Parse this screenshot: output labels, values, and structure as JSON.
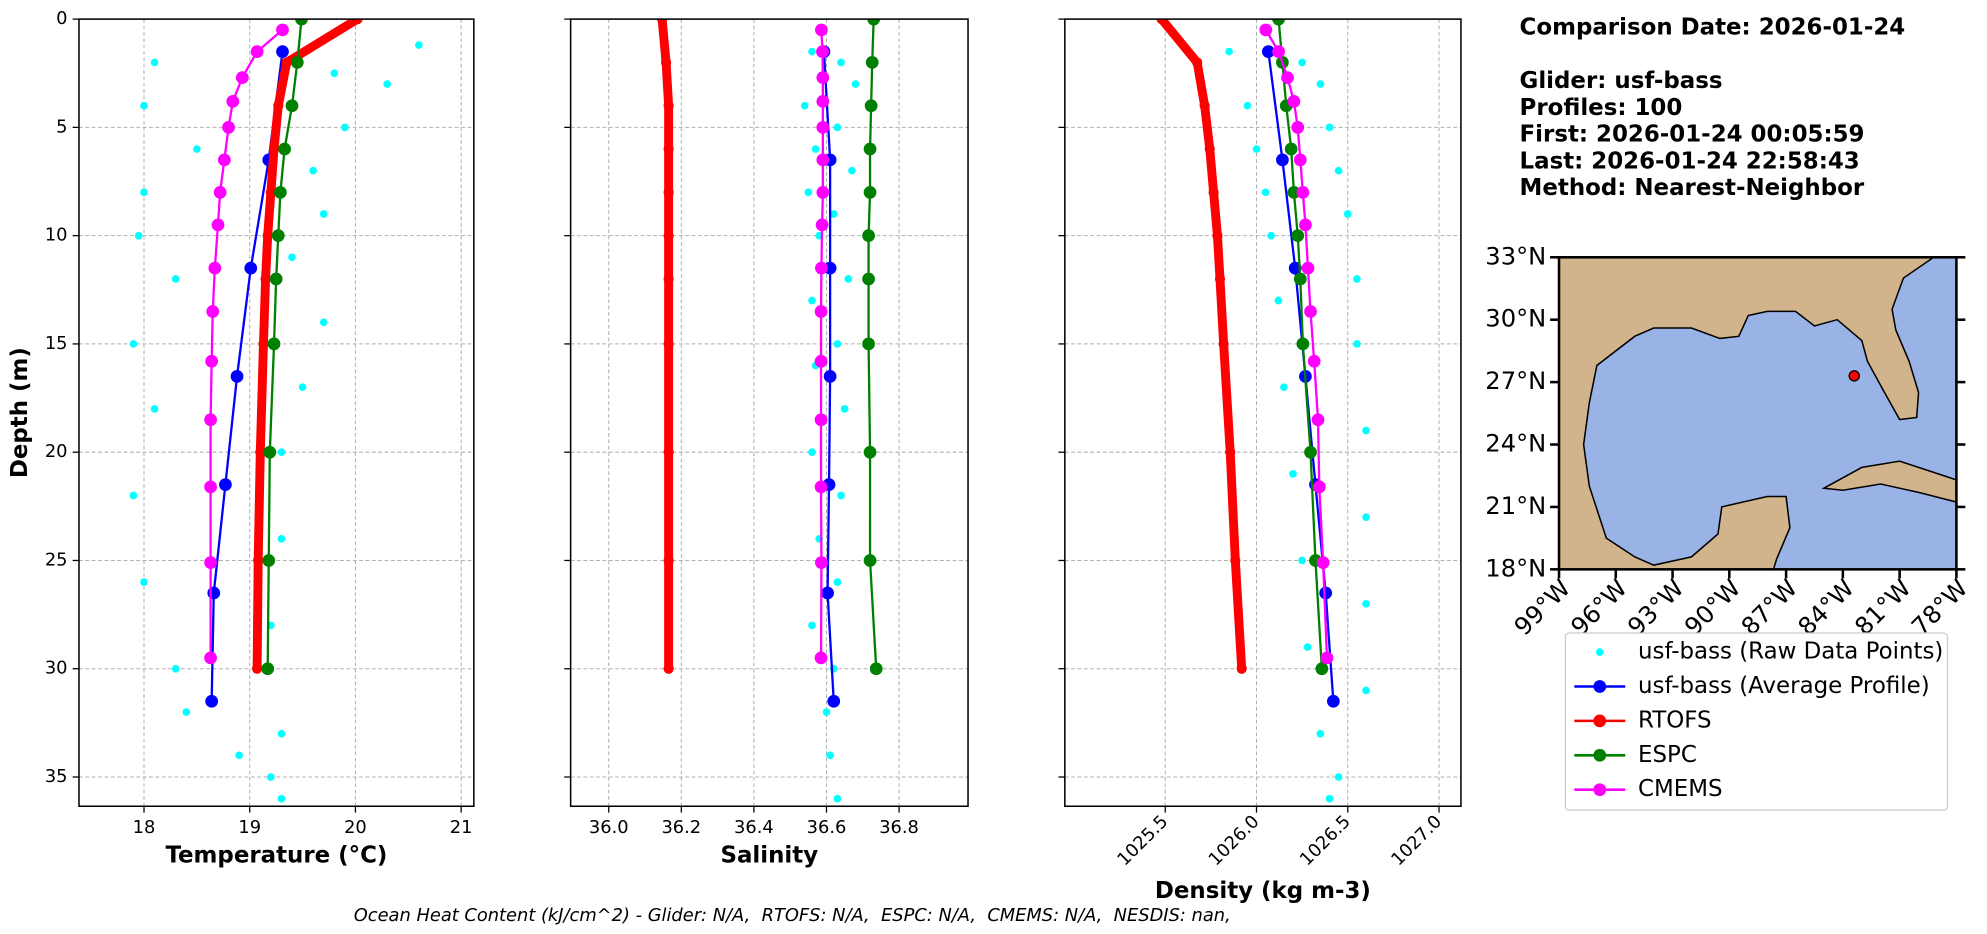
{
  "info": {
    "comparison": "Comparison Date: 2026-01-24",
    "lines": [
      "Glider: usf-bass",
      "Profiles: 100",
      "First: 2026-01-24 00:05:59",
      "Last: 2026-01-24 22:58:43",
      "Method: Nearest-Neighbor"
    ]
  },
  "footer": "Ocean Heat Content (kJ/cm^2) - Glider: N/A,  RTOFS: N/A,  ESPC: N/A,  CMEMS: N/A,  NESDIS: nan,",
  "chart_data": [
    {
      "type": "line",
      "xlabel": "Temperature (°C)",
      "ylabel": "Depth (m)",
      "grid": true,
      "invert_y": true,
      "xlim": [
        17.385,
        21.12
      ],
      "xticks": [
        18,
        19,
        20,
        21
      ],
      "ylim": [
        0,
        36.35
      ],
      "yticks": [
        0,
        5,
        10,
        15,
        20,
        25,
        30,
        35
      ],
      "series": [
        {
          "name": "usf-bass (Raw Data Points)",
          "color": "#00ffff",
          "style": "points",
          "depth": [
            1.2,
            2,
            2.5,
            3,
            4,
            5,
            6,
            7,
            8,
            9,
            10,
            11,
            12,
            14,
            15,
            17,
            18,
            20,
            22,
            24,
            26,
            28,
            30,
            32,
            33,
            34,
            35,
            36
          ],
          "values": [
            20.6,
            18.1,
            19.8,
            20.3,
            18.0,
            19.9,
            18.5,
            19.6,
            18.0,
            19.7,
            17.95,
            19.4,
            18.3,
            19.7,
            17.9,
            19.5,
            18.1,
            19.3,
            17.9,
            19.3,
            18.0,
            19.2,
            18.3,
            18.4,
            19.3,
            18.9,
            19.2,
            19.3
          ]
        },
        {
          "name": "usf-bass (Average Profile)",
          "color": "#0000ff",
          "style": "line",
          "depth": [
            1.5,
            6.5,
            11.5,
            16.5,
            21.5,
            26.5,
            31.5
          ],
          "values": [
            19.31,
            19.18,
            19.01,
            18.88,
            18.77,
            18.66,
            18.64
          ]
        },
        {
          "name": "RTOFS",
          "color": "#ff0000",
          "style": "bold-line",
          "depth": [
            0,
            2,
            4,
            6,
            8,
            10,
            12,
            15,
            20,
            25,
            30
          ],
          "values": [
            20.02,
            19.35,
            19.27,
            19.23,
            19.2,
            19.17,
            19.15,
            19.13,
            19.1,
            19.08,
            19.07
          ]
        },
        {
          "name": "ESPC",
          "color": "#008000",
          "style": "line",
          "depth": [
            0,
            2,
            4,
            6,
            8,
            10,
            12,
            15,
            20,
            25,
            30
          ],
          "values": [
            19.49,
            19.45,
            19.4,
            19.33,
            19.29,
            19.27,
            19.25,
            19.23,
            19.19,
            19.18,
            19.17
          ]
        },
        {
          "name": "CMEMS",
          "color": "#ff00ff",
          "style": "line",
          "depth": [
            0.5,
            1.5,
            2.7,
            3.8,
            5,
            6.5,
            8,
            9.5,
            11.5,
            13.5,
            15.8,
            18.5,
            21.6,
            25.1,
            29.5
          ],
          "values": [
            19.31,
            19.07,
            18.93,
            18.84,
            18.8,
            18.76,
            18.72,
            18.7,
            18.67,
            18.65,
            18.64,
            18.63,
            18.63,
            18.63,
            18.63
          ]
        }
      ]
    },
    {
      "type": "line",
      "xlabel": "Salinity",
      "grid": true,
      "invert_y": true,
      "show_ytick_labels": false,
      "xlim": [
        35.895,
        36.99
      ],
      "xticks": [
        {
          "value": 36,
          "label": "36.0"
        },
        36.2,
        36.4,
        36.6,
        36.8
      ],
      "ylim": [
        0,
        36.35
      ],
      "yticks": [
        0,
        5,
        10,
        15,
        20,
        25,
        30,
        35
      ],
      "series": [
        {
          "color": "#00ffff",
          "style": "points",
          "depth": [
            1.5,
            2,
            3,
            4,
            5,
            6,
            7,
            8,
            9,
            10,
            12,
            13,
            15,
            16,
            18,
            20,
            22,
            24,
            26,
            28,
            30,
            32,
            34,
            36
          ],
          "values": [
            36.56,
            36.64,
            36.68,
            36.54,
            36.63,
            36.57,
            36.67,
            36.55,
            36.62,
            36.58,
            36.66,
            36.56,
            36.63,
            36.57,
            36.65,
            36.56,
            36.64,
            36.58,
            36.63,
            36.56,
            36.62,
            36.6,
            36.61,
            36.63
          ]
        },
        {
          "color": "#0000ff",
          "style": "line",
          "depth": [
            1.5,
            6.5,
            11.5,
            16.5,
            21.5,
            26.5,
            31.5
          ],
          "values": [
            36.593,
            36.61,
            36.61,
            36.61,
            36.607,
            36.603,
            36.62
          ]
        },
        {
          "color": "#ff0000",
          "style": "bold-line",
          "depth": [
            0,
            2,
            4,
            6,
            8,
            10,
            12,
            15,
            20,
            25,
            30
          ],
          "values": [
            36.147,
            36.158,
            36.165,
            36.165,
            36.165,
            36.165,
            36.165,
            36.165,
            36.165,
            36.165,
            36.165
          ]
        },
        {
          "color": "#008000",
          "style": "line",
          "depth": [
            0,
            2,
            4,
            6,
            8,
            10,
            12,
            15,
            20,
            25,
            30
          ],
          "values": [
            36.73,
            36.726,
            36.723,
            36.72,
            36.72,
            36.716,
            36.716,
            36.716,
            36.72,
            36.72,
            36.737
          ]
        },
        {
          "color": "#ff00ff",
          "style": "line",
          "depth": [
            0.5,
            1.5,
            2.7,
            3.8,
            5,
            6.5,
            8,
            9.5,
            11.5,
            13.5,
            15.8,
            18.5,
            21.6,
            25.1,
            29.5
          ],
          "values": [
            36.586,
            36.589,
            36.59,
            36.59,
            36.59,
            36.59,
            36.59,
            36.588,
            36.586,
            36.585,
            36.585,
            36.585,
            36.585,
            36.586,
            36.585
          ]
        }
      ]
    },
    {
      "type": "line",
      "xlabel": "Density (kg m-3)",
      "grid": true,
      "invert_y": true,
      "show_ytick_labels": false,
      "xtick_rotation": 45,
      "xlim": [
        1024.95,
        1027.12
      ],
      "xticks": [
        1025.5,
        {
          "value": 1026,
          "label": "1026.0"
        },
        1026.5,
        {
          "value": 1027,
          "label": "1027.0"
        }
      ],
      "ylim": [
        0,
        36.35
      ],
      "yticks": [
        0,
        5,
        10,
        15,
        20,
        25,
        30,
        35
      ],
      "series": [
        {
          "color": "#00ffff",
          "style": "points",
          "depth": [
            1.5,
            2,
            3,
            4,
            5,
            6,
            7,
            8,
            9,
            10,
            12,
            13,
            15,
            17,
            19,
            21,
            23,
            25,
            27,
            29,
            31,
            33,
            35,
            36
          ],
          "values": [
            1025.85,
            1026.25,
            1026.35,
            1025.95,
            1026.4,
            1026.0,
            1026.45,
            1026.05,
            1026.5,
            1026.08,
            1026.55,
            1026.12,
            1026.55,
            1026.15,
            1026.6,
            1026.2,
            1026.6,
            1026.25,
            1026.6,
            1026.28,
            1026.6,
            1026.35,
            1026.45,
            1026.4
          ]
        },
        {
          "color": "#0000ff",
          "style": "line",
          "depth": [
            1.5,
            6.5,
            11.5,
            16.5,
            21.5,
            26.5,
            31.5
          ],
          "values": [
            1026.065,
            1026.142,
            1026.212,
            1026.268,
            1026.323,
            1026.379,
            1026.421
          ]
        },
        {
          "color": "#ff0000",
          "style": "bold-line",
          "depth": [
            0,
            2,
            4,
            6,
            8,
            10,
            12,
            15,
            20,
            25,
            30
          ],
          "values": [
            1025.48,
            1025.675,
            1025.716,
            1025.744,
            1025.765,
            1025.786,
            1025.8,
            1025.82,
            1025.856,
            1025.884,
            1025.919
          ]
        },
        {
          "color": "#008000",
          "style": "line",
          "depth": [
            0,
            2,
            4,
            6,
            8,
            10,
            12,
            15,
            20,
            25,
            30
          ],
          "values": [
            1026.121,
            1026.142,
            1026.163,
            1026.19,
            1026.205,
            1026.226,
            1026.24,
            1026.254,
            1026.296,
            1026.323,
            1026.358
          ]
        },
        {
          "color": "#ff00ff",
          "style": "line",
          "depth": [
            0.5,
            1.5,
            2.7,
            3.8,
            5,
            6.5,
            8,
            9.5,
            11.5,
            13.5,
            15.8,
            18.5,
            21.6,
            25.1,
            29.5
          ],
          "values": [
            1026.051,
            1026.121,
            1026.17,
            1026.205,
            1026.226,
            1026.24,
            1026.254,
            1026.268,
            1026.282,
            1026.296,
            1026.316,
            1026.337,
            1026.344,
            1026.365,
            1026.386
          ]
        }
      ]
    },
    {
      "type": "map",
      "land_color": "#d2b48c",
      "ocean_color": "#99b3e6",
      "xlim": [
        -99,
        -78
      ],
      "ylim": [
        18,
        33
      ],
      "xticks": [
        {
          "value": -99,
          "label": "99°W"
        },
        {
          "value": -96,
          "label": "96°W"
        },
        {
          "value": -93,
          "label": "93°W"
        },
        {
          "value": -90,
          "label": "90°W"
        },
        {
          "value": -87,
          "label": "87°W"
        },
        {
          "value": -84,
          "label": "84°W"
        },
        {
          "value": -81,
          "label": "81°W"
        },
        {
          "value": -78,
          "label": "78°W"
        }
      ],
      "yticks": [
        {
          "value": 18,
          "label": "18°N"
        },
        {
          "value": 21,
          "label": "21°N"
        },
        {
          "value": 24,
          "label": "24°N"
        },
        {
          "value": 27,
          "label": "27°N"
        },
        {
          "value": 30,
          "label": "30°N"
        },
        {
          "value": 33,
          "label": "33°N"
        }
      ],
      "position": {
        "lon": -83.4,
        "lat": 27.3,
        "color": "#ff0000"
      }
    }
  ]
}
